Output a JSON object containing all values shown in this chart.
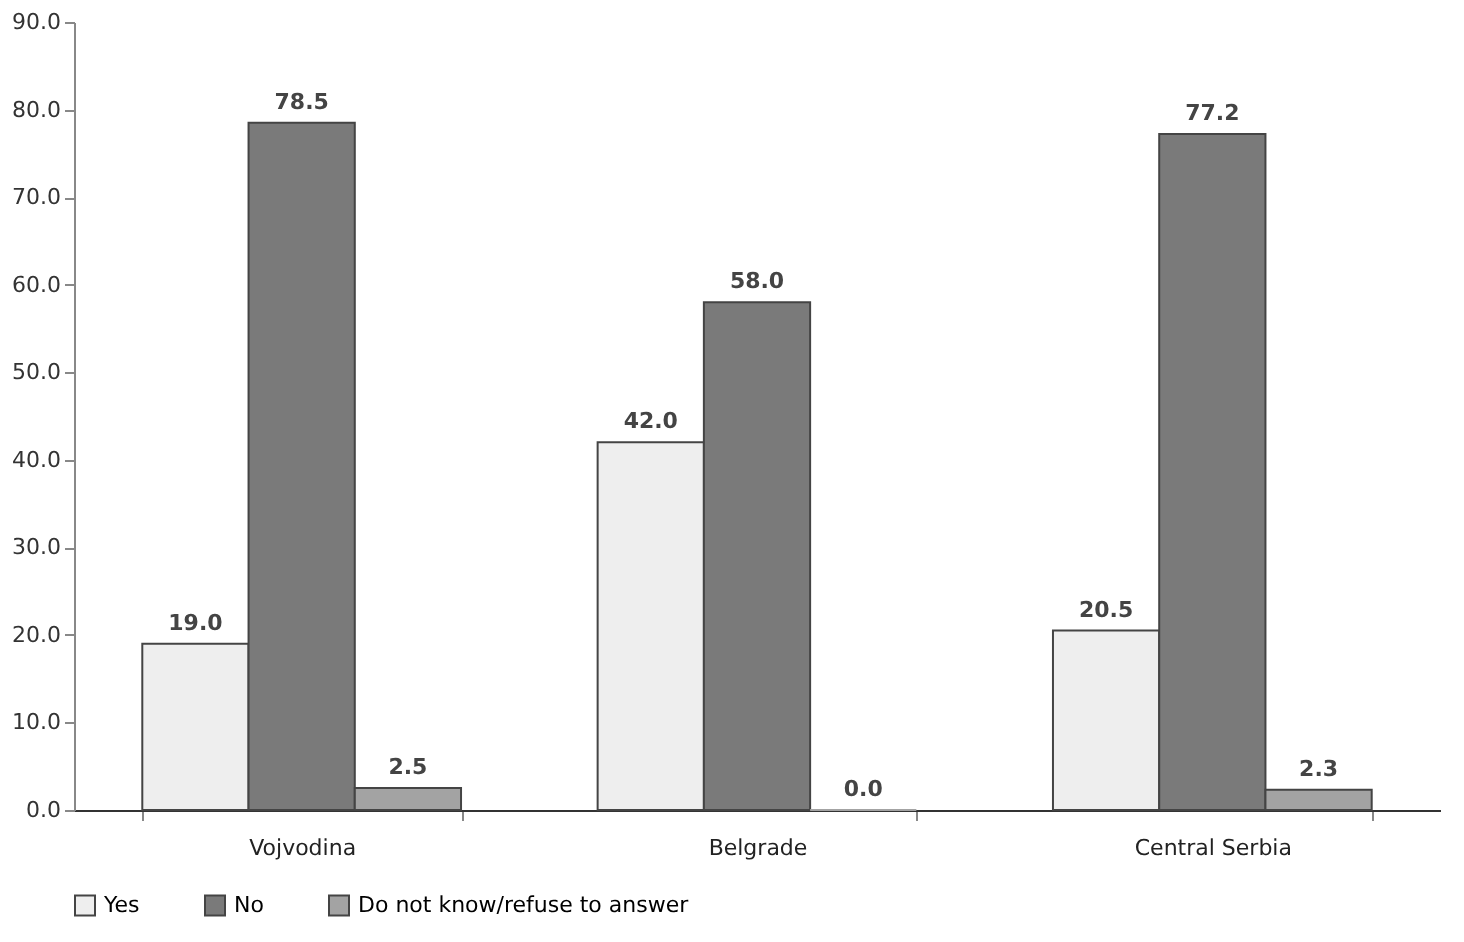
{
  "chart_data": {
    "type": "bar",
    "categories": [
      "Vojvodina",
      "Belgrade",
      "Central Serbia"
    ],
    "series": [
      {
        "name": "Yes",
        "color": "#eeeeee",
        "values": [
          19.0,
          42.0,
          20.5
        ],
        "value_labels": [
          "19.0",
          "42.0",
          "20.5"
        ]
      },
      {
        "name": "No",
        "color": "#7a7a7a",
        "values": [
          78.5,
          58.0,
          77.2
        ],
        "value_labels": [
          "78.5",
          "58.0",
          "77.2"
        ]
      },
      {
        "name": "Do not know/refuse to answer",
        "color": "#a3a3a3",
        "values": [
          2.5,
          0.0,
          2.3
        ],
        "value_labels": [
          "2.5",
          "0.0",
          "2.3"
        ]
      }
    ],
    "ylim": [
      0,
      90
    ],
    "yticks": [
      {
        "value": 0,
        "label": "0.0"
      },
      {
        "value": 10,
        "label": "10.0"
      },
      {
        "value": 20,
        "label": "20.0"
      },
      {
        "value": 30,
        "label": "30.0"
      },
      {
        "value": 40,
        "label": "40.0"
      },
      {
        "value": 50,
        "label": "50.0"
      },
      {
        "value": 60,
        "label": "60.0"
      },
      {
        "value": 70,
        "label": "70.0"
      },
      {
        "value": 80,
        "label": "80.0"
      },
      {
        "value": 90,
        "label": "90.0"
      }
    ],
    "grid": false,
    "legend": "bottom"
  }
}
